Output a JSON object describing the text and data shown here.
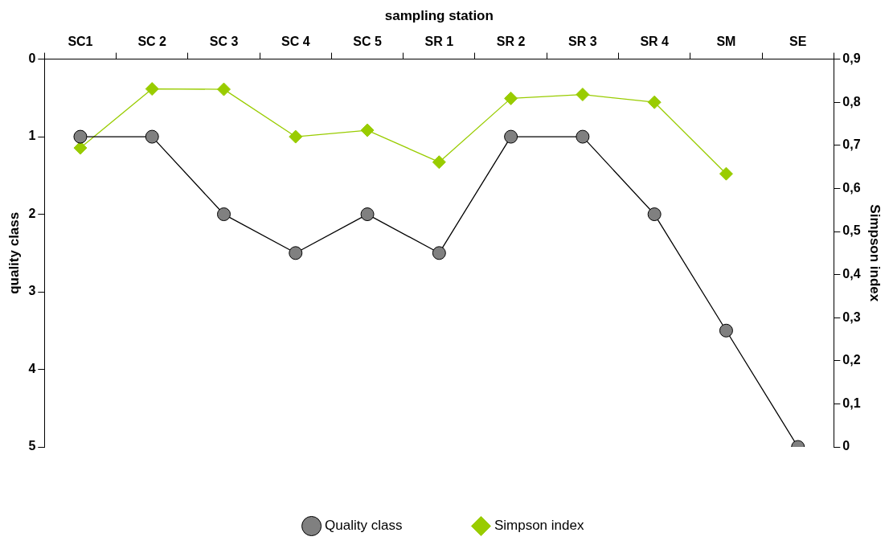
{
  "chart_data": {
    "type": "line",
    "xlabel": "sampling station",
    "ylabel": "quality class",
    "y2label": "Simpson index",
    "categories": [
      "SC1",
      "SC 2",
      "SC 3",
      "SC 4",
      "SC 5",
      "SR 1",
      "SR 2",
      "SR 3",
      "SR 4",
      "SM",
      "SE"
    ],
    "series": [
      {
        "name": "Quality class",
        "color": "#000000",
        "colors": [
          "#808080",
          "#808080",
          "#808080",
          "#808080",
          "#808080",
          "#808080",
          "#808080",
          "#808080",
          "#808080",
          "#808080",
          "#808080"
        ],
        "marker": "circle",
        "values": [
          1,
          1,
          2,
          2.5,
          2,
          2.5,
          1,
          1,
          2,
          3.5,
          5
        ]
      },
      {
        "name": "Simpson index",
        "color": "#99cc00",
        "marker": "diamond",
        "axis": "y2",
        "values": [
          0.694,
          0.831,
          0.83,
          0.72,
          0.735,
          0.661,
          0.809,
          0.818,
          0.8,
          0.634,
          null
        ]
      }
    ],
    "ylim": [
      5,
      0
    ],
    "yticks": [
      0,
      1,
      2,
      3,
      4,
      5
    ],
    "y2lim": [
      0,
      0.9
    ],
    "y2ticks": [
      {
        "value": 0,
        "label": "0"
      },
      {
        "value": 0.1,
        "label": "0,1"
      },
      {
        "value": 0.2,
        "label": "0,2"
      },
      {
        "value": 0.3,
        "label": "0,3"
      },
      {
        "value": 0.4,
        "label": "0,4"
      },
      {
        "value": 0.5,
        "label": "0,5"
      },
      {
        "value": 0.6,
        "label": "0,6"
      },
      {
        "value": 0.7,
        "label": "0,7"
      },
      {
        "value": 0.8,
        "label": "0,8"
      },
      {
        "value": 0.9,
        "label": "0,9"
      }
    ],
    "grid": false,
    "legend": "bottom"
  }
}
